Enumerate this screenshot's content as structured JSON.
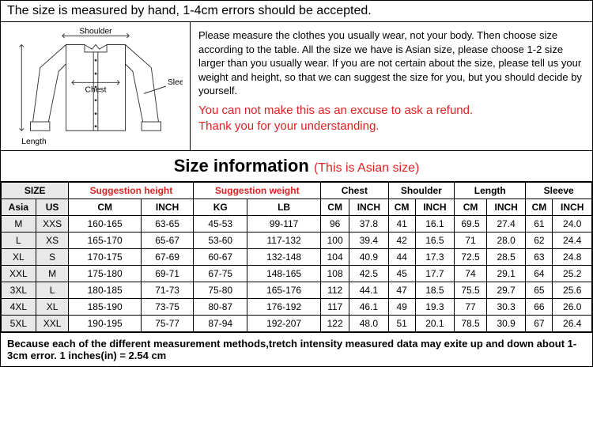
{
  "header_note": "The size is measured by hand, 1-4cm errors should be accepted.",
  "diagram": {
    "labels": {
      "shoulder": "Shoulder",
      "length": "Length",
      "chest": "Chest",
      "sleeve": "Sleeve"
    },
    "stroke": "#333333",
    "fill": "#ffffff"
  },
  "instructions": {
    "para1": "Please measure the clothes you usually wear, not your body. Then choose size according to the table. All the size we have is Asian size, please choose 1-2 size larger than you usually wear. If you are not certain about the size, please tell us your weight and height, so that we can suggest the size for you, but you should decide by yourself.",
    "warn1": "You can not make this as an excuse to ask a refund.",
    "warn2": "Thank you for your understanding."
  },
  "title": "Size information",
  "title_note": "(This is Asian size)",
  "columns": {
    "size": "SIZE",
    "sugg_height": "Suggestion height",
    "sugg_weight": "Suggestion weight",
    "chest": "Chest",
    "shoulder": "Shoulder",
    "length": "Length",
    "sleeve": "Sleeve",
    "asia": "Asia",
    "us": "US",
    "cm": "CM",
    "inch": "INCH",
    "kg": "KG",
    "lb": "LB"
  },
  "rows": [
    {
      "asia": "M",
      "us": "XXS",
      "h_cm": "160-165",
      "h_in": "63-65",
      "w_kg": "45-53",
      "w_lb": "99-117",
      "c_cm": "96",
      "c_in": "37.8",
      "s_cm": "41",
      "s_in": "16.1",
      "l_cm": "69.5",
      "l_in": "27.4",
      "sl_cm": "61",
      "sl_in": "24.0"
    },
    {
      "asia": "L",
      "us": "XS",
      "h_cm": "165-170",
      "h_in": "65-67",
      "w_kg": "53-60",
      "w_lb": "117-132",
      "c_cm": "100",
      "c_in": "39.4",
      "s_cm": "42",
      "s_in": "16.5",
      "l_cm": "71",
      "l_in": "28.0",
      "sl_cm": "62",
      "sl_in": "24.4"
    },
    {
      "asia": "XL",
      "us": "S",
      "h_cm": "170-175",
      "h_in": "67-69",
      "w_kg": "60-67",
      "w_lb": "132-148",
      "c_cm": "104",
      "c_in": "40.9",
      "s_cm": "44",
      "s_in": "17.3",
      "l_cm": "72.5",
      "l_in": "28.5",
      "sl_cm": "63",
      "sl_in": "24.8"
    },
    {
      "asia": "XXL",
      "us": "M",
      "h_cm": "175-180",
      "h_in": "69-71",
      "w_kg": "67-75",
      "w_lb": "148-165",
      "c_cm": "108",
      "c_in": "42.5",
      "s_cm": "45",
      "s_in": "17.7",
      "l_cm": "74",
      "l_in": "29.1",
      "sl_cm": "64",
      "sl_in": "25.2"
    },
    {
      "asia": "3XL",
      "us": "L",
      "h_cm": "180-185",
      "h_in": "71-73",
      "w_kg": "75-80",
      "w_lb": "165-176",
      "c_cm": "112",
      "c_in": "44.1",
      "s_cm": "47",
      "s_in": "18.5",
      "l_cm": "75.5",
      "l_in": "29.7",
      "sl_cm": "65",
      "sl_in": "25.6"
    },
    {
      "asia": "4XL",
      "us": "XL",
      "h_cm": "185-190",
      "h_in": "73-75",
      "w_kg": "80-87",
      "w_lb": "176-192",
      "c_cm": "117",
      "c_in": "46.1",
      "s_cm": "49",
      "s_in": "19.3",
      "l_cm": "77",
      "l_in": "30.3",
      "sl_cm": "66",
      "sl_in": "26.0"
    },
    {
      "asia": "5XL",
      "us": "XXL",
      "h_cm": "190-195",
      "h_in": "75-77",
      "w_kg": "87-94",
      "w_lb": "192-207",
      "c_cm": "122",
      "c_in": "48.0",
      "s_cm": "51",
      "s_in": "20.1",
      "l_cm": "78.5",
      "l_in": "30.9",
      "sl_cm": "67",
      "sl_in": "26.4"
    }
  ],
  "footer_note": "Because each of the different measurement methods,tretch intensity measured data may exite up and down about 1-3cm error.   1 inches(in) = 2.54 cm"
}
